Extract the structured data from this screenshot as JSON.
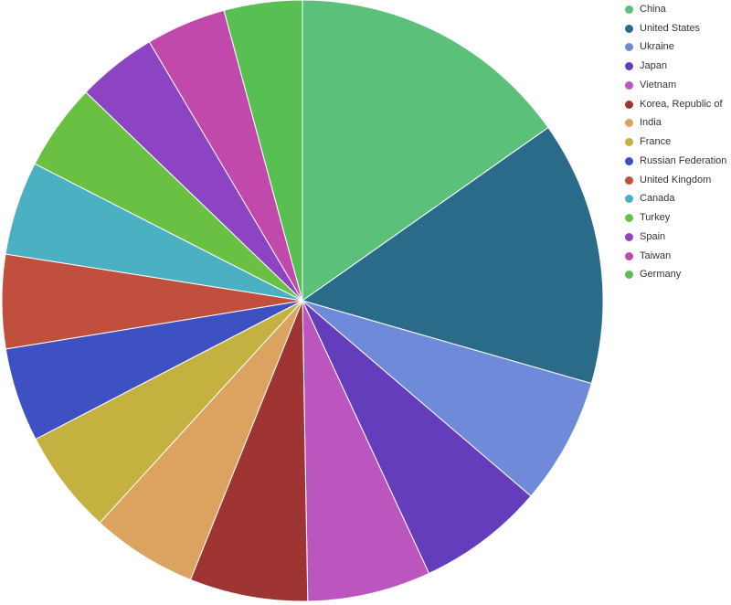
{
  "chart_data": {
    "type": "pie",
    "categories": [
      "China",
      "United States",
      "Ukraine",
      "Japan",
      "Vietnam",
      "Korea, Republic of",
      "India",
      "France",
      "Russian Federation",
      "United Kingdom",
      "Canada",
      "Turkey",
      "Spain",
      "Taiwan",
      "Germany"
    ],
    "values": [
      16.3,
      15.2,
      7.3,
      7.3,
      7.1,
      6.8,
      6.1,
      6.0,
      5.4,
      5.4,
      5.4,
      5.0,
      4.6,
      4.6,
      4.5
    ],
    "colors": [
      "#5bc17a",
      "#2b6b8a",
      "#6f8ad9",
      "#643dbd",
      "#bc56bf",
      "#9e3533",
      "#dca25f",
      "#c4b13f",
      "#3d51c2",
      "#c0503d",
      "#4ab0c2",
      "#6ac043",
      "#8c44c3",
      "#c049ab",
      "#58c052"
    ],
    "legend_position": "right"
  }
}
